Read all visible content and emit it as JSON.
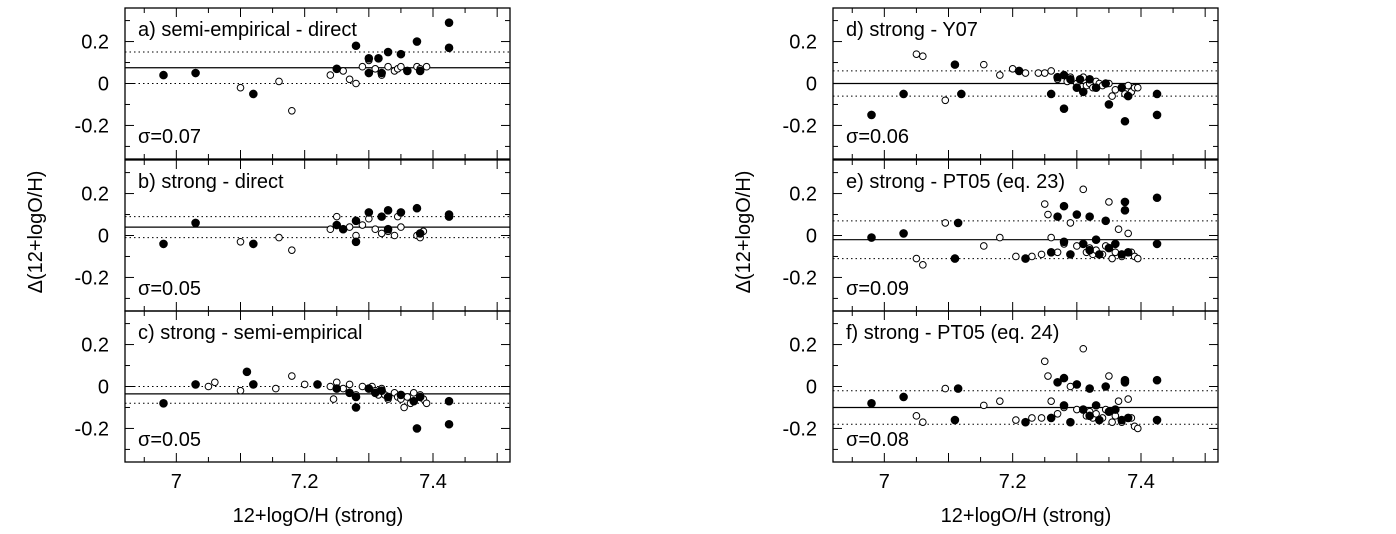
{
  "figure": {
    "left_xlabel": "12+logO/H (strong)",
    "right_xlabel": "12+logO/H (strong)",
    "left_ylabel": "Δ(12+logO/H)",
    "right_ylabel": "Δ(12+logO/H)"
  },
  "chart_data": [
    {
      "type": "scatter",
      "column": 0,
      "row": 0,
      "label": "a)  semi-empirical - direct",
      "sigma_text": "σ=0.07",
      "xlim": [
        6.92,
        7.52
      ],
      "ylim": [
        -0.36,
        0.36
      ],
      "xticks": [
        "7",
        "7.2",
        "7.4"
      ],
      "yticks": [
        "0.2",
        "0",
        "-0.2"
      ],
      "mean": 0.075,
      "band": [
        0.0,
        0.15
      ],
      "points_filled": [
        [
          6.98,
          0.04
        ],
        [
          7.03,
          0.05
        ],
        [
          7.12,
          -0.05
        ],
        [
          7.25,
          0.07
        ],
        [
          7.28,
          0.18
        ],
        [
          7.3,
          0.12
        ],
        [
          7.3,
          0.05
        ],
        [
          7.32,
          0.05
        ],
        [
          7.33,
          0.15
        ],
        [
          7.35,
          0.14
        ],
        [
          7.36,
          0.06
        ],
        [
          7.375,
          0.2
        ],
        [
          7.38,
          0.06
        ],
        [
          7.425,
          0.17
        ],
        [
          7.425,
          0.29
        ],
        [
          7.315,
          0.12
        ]
      ],
      "points_open": [
        [
          7.1,
          -0.02
        ],
        [
          7.16,
          0.01
        ],
        [
          7.18,
          -0.13
        ],
        [
          7.24,
          0.04
        ],
        [
          7.26,
          0.06
        ],
        [
          7.27,
          0.02
        ],
        [
          7.28,
          0.0
        ],
        [
          7.29,
          0.08
        ],
        [
          7.3,
          0.11
        ],
        [
          7.31,
          0.07
        ],
        [
          7.32,
          0.04
        ],
        [
          7.33,
          0.08
        ],
        [
          7.34,
          0.06
        ],
        [
          7.345,
          0.07
        ],
        [
          7.35,
          0.08
        ],
        [
          7.375,
          0.08
        ],
        [
          7.38,
          0.07
        ],
        [
          7.39,
          0.08
        ]
      ]
    },
    {
      "type": "scatter",
      "column": 0,
      "row": 1,
      "label": "b)  strong - direct",
      "sigma_text": "σ=0.05",
      "xlim": [
        6.92,
        7.52
      ],
      "ylim": [
        -0.36,
        0.36
      ],
      "xticks": [
        "7",
        "7.2",
        "7.4"
      ],
      "yticks": [
        "0.2",
        "0",
        "-0.2"
      ],
      "mean": 0.04,
      "band": [
        -0.01,
        0.09
      ],
      "points_filled": [
        [
          6.98,
          -0.04
        ],
        [
          7.03,
          0.06
        ],
        [
          7.12,
          -0.04
        ],
        [
          7.25,
          0.05
        ],
        [
          7.28,
          0.07
        ],
        [
          7.28,
          -0.03
        ],
        [
          7.3,
          0.11
        ],
        [
          7.32,
          0.09
        ],
        [
          7.33,
          0.12
        ],
        [
          7.33,
          0.03
        ],
        [
          7.35,
          0.11
        ],
        [
          7.375,
          0.13
        ],
        [
          7.38,
          0.01
        ],
        [
          7.425,
          0.09
        ],
        [
          7.425,
          0.1
        ],
        [
          7.26,
          0.03
        ]
      ],
      "points_open": [
        [
          7.1,
          -0.03
        ],
        [
          7.16,
          -0.01
        ],
        [
          7.18,
          -0.07
        ],
        [
          7.24,
          0.03
        ],
        [
          7.25,
          0.09
        ],
        [
          7.27,
          0.04
        ],
        [
          7.28,
          0.0
        ],
        [
          7.29,
          0.05
        ],
        [
          7.3,
          0.08
        ],
        [
          7.31,
          0.03
        ],
        [
          7.32,
          0.01
        ],
        [
          7.33,
          0.02
        ],
        [
          7.34,
          0.0
        ],
        [
          7.345,
          0.09
        ],
        [
          7.35,
          0.04
        ],
        [
          7.375,
          0.0
        ],
        [
          7.38,
          -0.01
        ],
        [
          7.385,
          0.02
        ]
      ]
    },
    {
      "type": "scatter",
      "column": 0,
      "row": 2,
      "label": "c)  strong - semi-empirical",
      "sigma_text": "σ=0.05",
      "xlim": [
        6.92,
        7.52
      ],
      "ylim": [
        -0.36,
        0.36
      ],
      "xticks": [
        "7",
        "7.2",
        "7.4"
      ],
      "yticks": [
        "0.2",
        "0",
        "-0.2"
      ],
      "mean": -0.035,
      "band": [
        0.0,
        -0.08
      ],
      "points_filled": [
        [
          6.98,
          -0.08
        ],
        [
          7.03,
          0.01
        ],
        [
          7.11,
          0.07
        ],
        [
          7.12,
          0.01
        ],
        [
          7.22,
          0.01
        ],
        [
          7.25,
          -0.01
        ],
        [
          7.27,
          -0.03
        ],
        [
          7.28,
          -0.05
        ],
        [
          7.28,
          -0.1
        ],
        [
          7.3,
          -0.01
        ],
        [
          7.31,
          -0.03
        ],
        [
          7.32,
          -0.02
        ],
        [
          7.33,
          -0.05
        ],
        [
          7.35,
          -0.04
        ],
        [
          7.37,
          -0.07
        ],
        [
          7.375,
          -0.2
        ],
        [
          7.38,
          -0.05
        ],
        [
          7.425,
          -0.07
        ],
        [
          7.425,
          -0.18
        ]
      ],
      "points_open": [
        [
          7.05,
          0.0
        ],
        [
          7.06,
          0.02
        ],
        [
          7.1,
          -0.02
        ],
        [
          7.155,
          -0.01
        ],
        [
          7.18,
          0.05
        ],
        [
          7.2,
          0.01
        ],
        [
          7.24,
          0.0
        ],
        [
          7.245,
          -0.06
        ],
        [
          7.25,
          0.02
        ],
        [
          7.26,
          -0.01
        ],
        [
          7.27,
          0.01
        ],
        [
          7.28,
          -0.04
        ],
        [
          7.29,
          0.0
        ],
        [
          7.3,
          -0.01
        ],
        [
          7.305,
          0.0
        ],
        [
          7.31,
          -0.02
        ],
        [
          7.315,
          -0.04
        ],
        [
          7.32,
          -0.01
        ],
        [
          7.325,
          -0.04
        ],
        [
          7.33,
          -0.06
        ],
        [
          7.34,
          -0.03
        ],
        [
          7.345,
          -0.05
        ],
        [
          7.35,
          -0.06
        ],
        [
          7.355,
          -0.1
        ],
        [
          7.36,
          -0.05
        ],
        [
          7.365,
          -0.08
        ],
        [
          7.37,
          -0.03
        ],
        [
          7.38,
          -0.04
        ],
        [
          7.385,
          -0.06
        ],
        [
          7.39,
          -0.08
        ]
      ]
    },
    {
      "type": "scatter",
      "column": 1,
      "row": 0,
      "label": "d)  strong - Y07",
      "sigma_text": "σ=0.06",
      "xlim": [
        6.92,
        7.52
      ],
      "ylim": [
        -0.36,
        0.36
      ],
      "xticks": [
        "7",
        "7.2",
        "7.4"
      ],
      "yticks": [
        "0.2",
        "0",
        "-0.2"
      ],
      "mean": 0.0,
      "band": [
        0.06,
        -0.06
      ],
      "points_filled": [
        [
          6.98,
          -0.15
        ],
        [
          7.03,
          -0.05
        ],
        [
          7.11,
          0.09
        ],
        [
          7.12,
          -0.05
        ],
        [
          7.21,
          0.06
        ],
        [
          7.26,
          -0.05
        ],
        [
          7.27,
          0.03
        ],
        [
          7.28,
          0.04
        ],
        [
          7.28,
          -0.12
        ],
        [
          7.29,
          0.02
        ],
        [
          7.3,
          -0.02
        ],
        [
          7.305,
          0.02
        ],
        [
          7.31,
          -0.04
        ],
        [
          7.32,
          0.02
        ],
        [
          7.33,
          -0.02
        ],
        [
          7.345,
          0.0
        ],
        [
          7.35,
          -0.1
        ],
        [
          7.37,
          -0.02
        ],
        [
          7.375,
          -0.18
        ],
        [
          7.38,
          -0.06
        ],
        [
          7.425,
          -0.05
        ],
        [
          7.425,
          -0.15
        ]
      ],
      "points_open": [
        [
          7.05,
          0.14
        ],
        [
          7.06,
          0.13
        ],
        [
          7.095,
          -0.08
        ],
        [
          7.155,
          0.09
        ],
        [
          7.18,
          0.04
        ],
        [
          7.2,
          0.07
        ],
        [
          7.22,
          0.05
        ],
        [
          7.24,
          0.05
        ],
        [
          7.25,
          0.05
        ],
        [
          7.26,
          0.06
        ],
        [
          7.27,
          0.02
        ],
        [
          7.285,
          0.01
        ],
        [
          7.29,
          0.03
        ],
        [
          7.3,
          0.0
        ],
        [
          7.31,
          0.03
        ],
        [
          7.315,
          -0.01
        ],
        [
          7.32,
          0.0
        ],
        [
          7.325,
          -0.02
        ],
        [
          7.33,
          0.01
        ],
        [
          7.335,
          0.0
        ],
        [
          7.34,
          -0.01
        ],
        [
          7.35,
          0.0
        ],
        [
          7.355,
          -0.06
        ],
        [
          7.36,
          -0.03
        ],
        [
          7.37,
          -0.02
        ],
        [
          7.375,
          -0.05
        ],
        [
          7.38,
          -0.01
        ],
        [
          7.385,
          -0.04
        ],
        [
          7.39,
          -0.02
        ],
        [
          7.395,
          -0.02
        ]
      ]
    },
    {
      "type": "scatter",
      "column": 1,
      "row": 1,
      "label": "e)  strong - PT05 (eq. 23)",
      "sigma_text": "σ=0.09",
      "xlim": [
        6.92,
        7.52
      ],
      "ylim": [
        -0.36,
        0.36
      ],
      "xticks": [
        "7",
        "7.2",
        "7.4"
      ],
      "yticks": [
        "0.2",
        "0",
        "-0.2"
      ],
      "mean": -0.02,
      "band": [
        0.07,
        -0.11
      ],
      "points_filled": [
        [
          6.98,
          -0.01
        ],
        [
          7.03,
          0.01
        ],
        [
          7.11,
          -0.11
        ],
        [
          7.115,
          0.06
        ],
        [
          7.22,
          -0.11
        ],
        [
          7.26,
          -0.08
        ],
        [
          7.27,
          0.09
        ],
        [
          7.28,
          0.14
        ],
        [
          7.28,
          -0.03
        ],
        [
          7.29,
          -0.09
        ],
        [
          7.3,
          0.1
        ],
        [
          7.31,
          -0.04
        ],
        [
          7.32,
          0.09
        ],
        [
          7.32,
          -0.07
        ],
        [
          7.33,
          -0.02
        ],
        [
          7.335,
          -0.09
        ],
        [
          7.345,
          0.07
        ],
        [
          7.35,
          -0.06
        ],
        [
          7.36,
          -0.04
        ],
        [
          7.37,
          -0.09
        ],
        [
          7.375,
          0.16
        ],
        [
          7.375,
          0.12
        ],
        [
          7.38,
          -0.08
        ],
        [
          7.425,
          0.18
        ],
        [
          7.425,
          -0.04
        ]
      ],
      "points_open": [
        [
          7.05,
          -0.11
        ],
        [
          7.06,
          -0.14
        ],
        [
          7.095,
          0.06
        ],
        [
          7.155,
          -0.05
        ],
        [
          7.18,
          -0.01
        ],
        [
          7.205,
          -0.1
        ],
        [
          7.23,
          -0.1
        ],
        [
          7.245,
          -0.09
        ],
        [
          7.25,
          0.15
        ],
        [
          7.255,
          0.1
        ],
        [
          7.26,
          -0.01
        ],
        [
          7.27,
          -0.08
        ],
        [
          7.28,
          -0.04
        ],
        [
          7.29,
          0.06
        ],
        [
          7.3,
          -0.05
        ],
        [
          7.31,
          0.22
        ],
        [
          7.315,
          -0.08
        ],
        [
          7.32,
          -0.06
        ],
        [
          7.325,
          -0.09
        ],
        [
          7.33,
          -0.07
        ],
        [
          7.34,
          -0.09
        ],
        [
          7.345,
          -0.05
        ],
        [
          7.35,
          0.16
        ],
        [
          7.355,
          -0.11
        ],
        [
          7.36,
          -0.08
        ],
        [
          7.365,
          0.03
        ],
        [
          7.37,
          -0.1
        ],
        [
          7.38,
          0.01
        ],
        [
          7.385,
          -0.08
        ],
        [
          7.39,
          -0.1
        ],
        [
          7.395,
          -0.11
        ]
      ]
    },
    {
      "type": "scatter",
      "column": 1,
      "row": 2,
      "label": "f)  strong - PT05 (eq. 24)",
      "sigma_text": "σ=0.08",
      "xlim": [
        6.92,
        7.52
      ],
      "ylim": [
        -0.36,
        0.36
      ],
      "xticks": [
        "7",
        "7.2",
        "7.4"
      ],
      "yticks": [
        "0.2",
        "0",
        "-0.2"
      ],
      "mean": -0.1,
      "band": [
        -0.02,
        -0.18
      ],
      "points_filled": [
        [
          6.98,
          -0.08
        ],
        [
          7.03,
          -0.05
        ],
        [
          7.11,
          -0.16
        ],
        [
          7.115,
          -0.01
        ],
        [
          7.22,
          -0.17
        ],
        [
          7.26,
          -0.15
        ],
        [
          7.27,
          0.02
        ],
        [
          7.28,
          0.04
        ],
        [
          7.28,
          -0.09
        ],
        [
          7.29,
          -0.17
        ],
        [
          7.3,
          0.01
        ],
        [
          7.31,
          -0.11
        ],
        [
          7.32,
          -0.01
        ],
        [
          7.32,
          -0.14
        ],
        [
          7.33,
          -0.09
        ],
        [
          7.335,
          -0.16
        ],
        [
          7.345,
          0.0
        ],
        [
          7.35,
          -0.12
        ],
        [
          7.36,
          -0.11
        ],
        [
          7.37,
          -0.16
        ],
        [
          7.375,
          0.03
        ],
        [
          7.375,
          0.02
        ],
        [
          7.38,
          -0.15
        ],
        [
          7.425,
          0.03
        ],
        [
          7.425,
          -0.16
        ]
      ],
      "points_open": [
        [
          7.05,
          -0.14
        ],
        [
          7.06,
          -0.17
        ],
        [
          7.095,
          -0.01
        ],
        [
          7.155,
          -0.09
        ],
        [
          7.18,
          -0.07
        ],
        [
          7.205,
          -0.16
        ],
        [
          7.23,
          -0.15
        ],
        [
          7.245,
          -0.15
        ],
        [
          7.25,
          0.12
        ],
        [
          7.255,
          0.05
        ],
        [
          7.26,
          -0.07
        ],
        [
          7.27,
          -0.13
        ],
        [
          7.28,
          -0.1
        ],
        [
          7.29,
          0.0
        ],
        [
          7.3,
          -0.11
        ],
        [
          7.31,
          0.18
        ],
        [
          7.315,
          -0.14
        ],
        [
          7.32,
          -0.12
        ],
        [
          7.325,
          -0.15
        ],
        [
          7.33,
          -0.13
        ],
        [
          7.34,
          -0.15
        ],
        [
          7.345,
          -0.11
        ],
        [
          7.35,
          0.05
        ],
        [
          7.355,
          -0.17
        ],
        [
          7.36,
          -0.14
        ],
        [
          7.365,
          -0.07
        ],
        [
          7.37,
          -0.17
        ],
        [
          7.38,
          -0.06
        ],
        [
          7.385,
          -0.15
        ],
        [
          7.39,
          -0.19
        ],
        [
          7.395,
          -0.2
        ]
      ]
    }
  ]
}
